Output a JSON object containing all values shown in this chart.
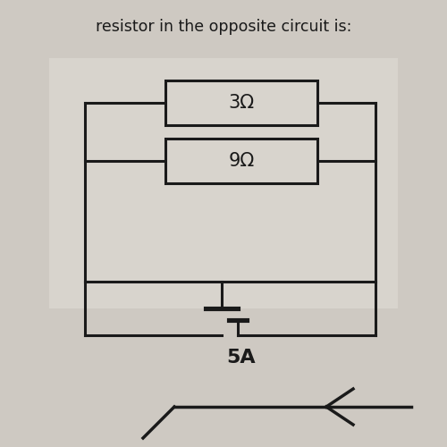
{
  "title_text": "resistor in the opposite circuit is:",
  "page_bg": "#cec9c2",
  "circuit_bg": "#d8d4cd",
  "resistor1_label": "3Ω",
  "resistor2_label": "9Ω",
  "current_label": "5A",
  "line_color": "#1a1a1a",
  "box_color": "#d8d4cd",
  "title_fontsize": 12.5,
  "label_fontsize": 15,
  "current_fontsize": 16,
  "lw": 2.2
}
